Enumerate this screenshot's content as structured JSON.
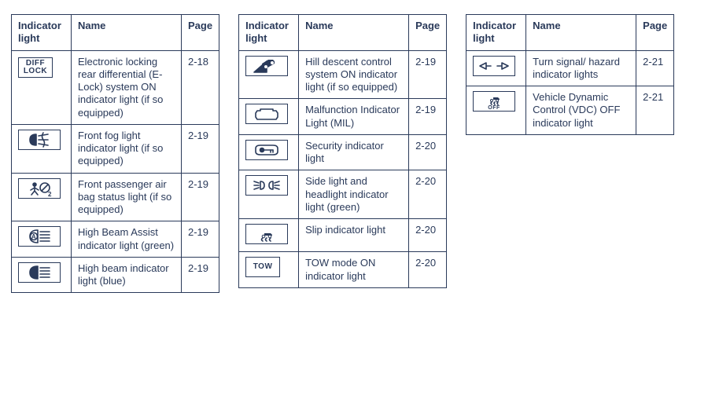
{
  "colors": {
    "text": "#2a3a5a",
    "border": "#2a3a5a",
    "background": "#ffffff"
  },
  "headers": {
    "icon": "Indicator light",
    "name": "Name",
    "page": "Page"
  },
  "tables": [
    {
      "rows": [
        {
          "icon_key": "diff-lock",
          "icon_text": "DIFF\nLOCK",
          "name": "Electronic locking rear differential (E-Lock) system ON indicator light (if so equipped)",
          "page": "2-18"
        },
        {
          "icon_key": "front-fog",
          "icon_svg": "fog",
          "name": "Front fog light indicator light (if so equipped)",
          "page": "2-19"
        },
        {
          "icon_key": "pass-airbag",
          "icon_svg": "airbag",
          "name": "Front passenger air bag status light (if so equipped)",
          "page": "2-19"
        },
        {
          "icon_key": "hba",
          "icon_svg": "hba",
          "name": "High Beam Assist indicator light (green)",
          "page": "2-19"
        },
        {
          "icon_key": "high-beam",
          "icon_svg": "highbeam",
          "name": "High beam indicator light (blue)",
          "page": "2-19"
        }
      ]
    },
    {
      "rows": [
        {
          "icon_key": "hill-desc",
          "icon_svg": "hill",
          "name": "Hill descent control system ON indicator light (if so equipped)",
          "page": "2-19"
        },
        {
          "icon_key": "mil",
          "icon_svg": "mil",
          "name": "Malfunction Indicator Light (MIL)",
          "page": "2-19"
        },
        {
          "icon_key": "security",
          "icon_svg": "security",
          "name": "Security indicator light",
          "page": "2-20"
        },
        {
          "icon_key": "side-light",
          "icon_svg": "sidelight",
          "name": "Side light and headlight indicator light (green)",
          "page": "2-20"
        },
        {
          "icon_key": "slip",
          "icon_svg": "slip",
          "name": "Slip indicator light",
          "page": "2-20"
        },
        {
          "icon_key": "tow",
          "icon_text": "TOW",
          "name": "TOW mode ON indicator light",
          "page": "2-20"
        }
      ]
    },
    {
      "rows": [
        {
          "icon_key": "turn-signal",
          "icon_svg": "turn",
          "name": "Turn signal/ hazard indicator lights",
          "page": "2-21"
        },
        {
          "icon_key": "vdc-off",
          "icon_svg": "vdcoff",
          "name": "Vehicle Dynamic Control (VDC) OFF indicator light",
          "page": "2-21"
        }
      ]
    }
  ]
}
